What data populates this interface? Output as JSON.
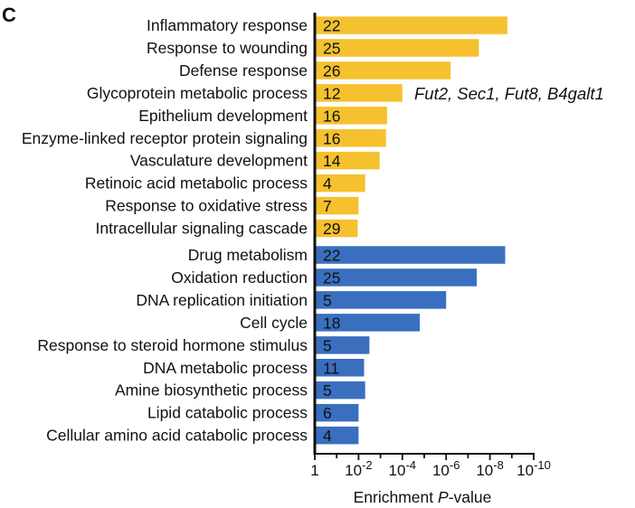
{
  "panel_label": "C",
  "chart_data": {
    "type": "bar",
    "orientation": "horizontal",
    "x_axis": {
      "scale": "log10-reciprocal",
      "range": [
        1,
        1e-10
      ],
      "ticks": [
        {
          "value": 1,
          "base": "1",
          "exp": ""
        },
        {
          "value": 0.01,
          "base": "10",
          "exp": "-2"
        },
        {
          "value": 0.0001,
          "base": "10",
          "exp": "-4"
        },
        {
          "value": 1e-06,
          "base": "10",
          "exp": "-6"
        },
        {
          "value": 1e-08,
          "base": "10",
          "exp": "-8"
        },
        {
          "value": 1e-10,
          "base": "10",
          "exp": "-10"
        }
      ],
      "title_main": "Enrichment ",
      "title_italic": "P",
      "title_suffix": "-value"
    },
    "series": [
      {
        "color": "#F5C12E",
        "categories": [
          "Inflammatory response",
          "Response to wounding",
          "Defense response",
          "Glycoprotein metabolic process",
          "Epithelium development",
          "Enzyme-linked receptor protein signaling",
          "Vasculature development",
          "Retinoic acid metabolic process",
          "Response to oxidative stress",
          "Intracellular signaling cascade"
        ],
        "p_values": [
          1.6e-09,
          3.2e-08,
          6.3e-07,
          0.0001,
          0.0005,
          0.00056,
          0.0011,
          0.005,
          0.01,
          0.011
        ],
        "gene_counts": [
          "22",
          "25",
          "26",
          "12",
          "16",
          "16",
          "14",
          "4",
          "7",
          "29"
        ]
      },
      {
        "color": "#3A6FBF",
        "categories": [
          "Drug metabolism",
          "Oxidation reduction",
          "DNA replication initiation",
          "Cell cycle",
          "Response to steroid hormone stimulus",
          "DNA metabolic process",
          "Amine biosynthetic process",
          "Lipid catabolic process",
          "Cellular amino acid catabolic process"
        ],
        "p_values": [
          2e-09,
          4e-08,
          1e-06,
          1.6e-05,
          0.0032,
          0.0056,
          0.005,
          0.01,
          0.01
        ],
        "gene_counts": [
          "22",
          "25",
          "5",
          "18",
          "5",
          "11",
          "5",
          "6",
          "4"
        ]
      }
    ],
    "annotations": [
      {
        "text": "Fut2, Sec1, Fut8, B4galt1",
        "category": "Glycoprotein metabolic process"
      }
    ]
  }
}
